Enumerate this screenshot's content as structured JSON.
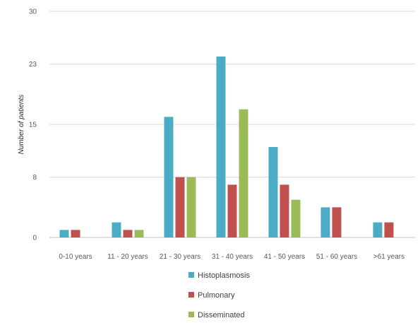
{
  "chart_data": {
    "type": "bar",
    "title": "",
    "xlabel": "",
    "ylabel": "Number of patients",
    "ylim": [
      0,
      30
    ],
    "yticks": [
      "0",
      "8",
      "15",
      "23",
      "30"
    ],
    "grid": true,
    "legend_placement": "bottom",
    "categories": [
      "0-10 years",
      "11 - 20 years",
      "21 - 30 years",
      "31 - 40 years",
      "41 - 50 years",
      "51 - 60 years",
      ">61 years"
    ],
    "series": [
      {
        "name": "Histoplasmosis",
        "color": "#4BACC6",
        "values": [
          1,
          2,
          16,
          24,
          12,
          4,
          2
        ]
      },
      {
        "name": "Pulmonary",
        "color": "#C0504D",
        "values": [
          1,
          1,
          8,
          7,
          7,
          4,
          2
        ]
      },
      {
        "name": "Disseminated",
        "color": "#9BBB59",
        "values": [
          0,
          1,
          8,
          17,
          5,
          0,
          0
        ]
      }
    ]
  }
}
